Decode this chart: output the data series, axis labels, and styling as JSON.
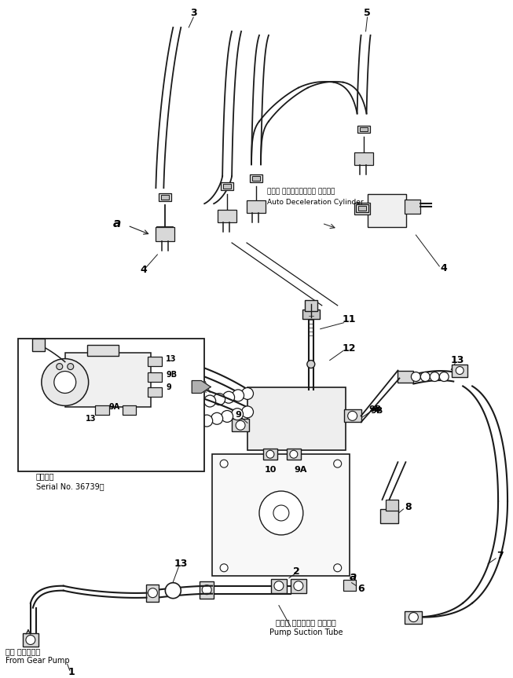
{
  "bg_color": "#ffffff",
  "line_color": "#1a1a1a",
  "fig_width": 6.53,
  "fig_height": 8.63,
  "dpi": 100,
  "labels": {
    "title_jp": "オート デセラレーション シリンダ",
    "title_en": "Auto Deceleration Cylinder",
    "inset_serial_jp": "適用号機",
    "inset_serial_en": "Serial No. 36739～",
    "from_gear_jp": "ギヤ ポンプから",
    "from_gear_en": "From Gear Pump",
    "pump_tube_jp": "ポンプ サクション チューブ",
    "pump_tube_en": "Pump Suction Tube"
  }
}
